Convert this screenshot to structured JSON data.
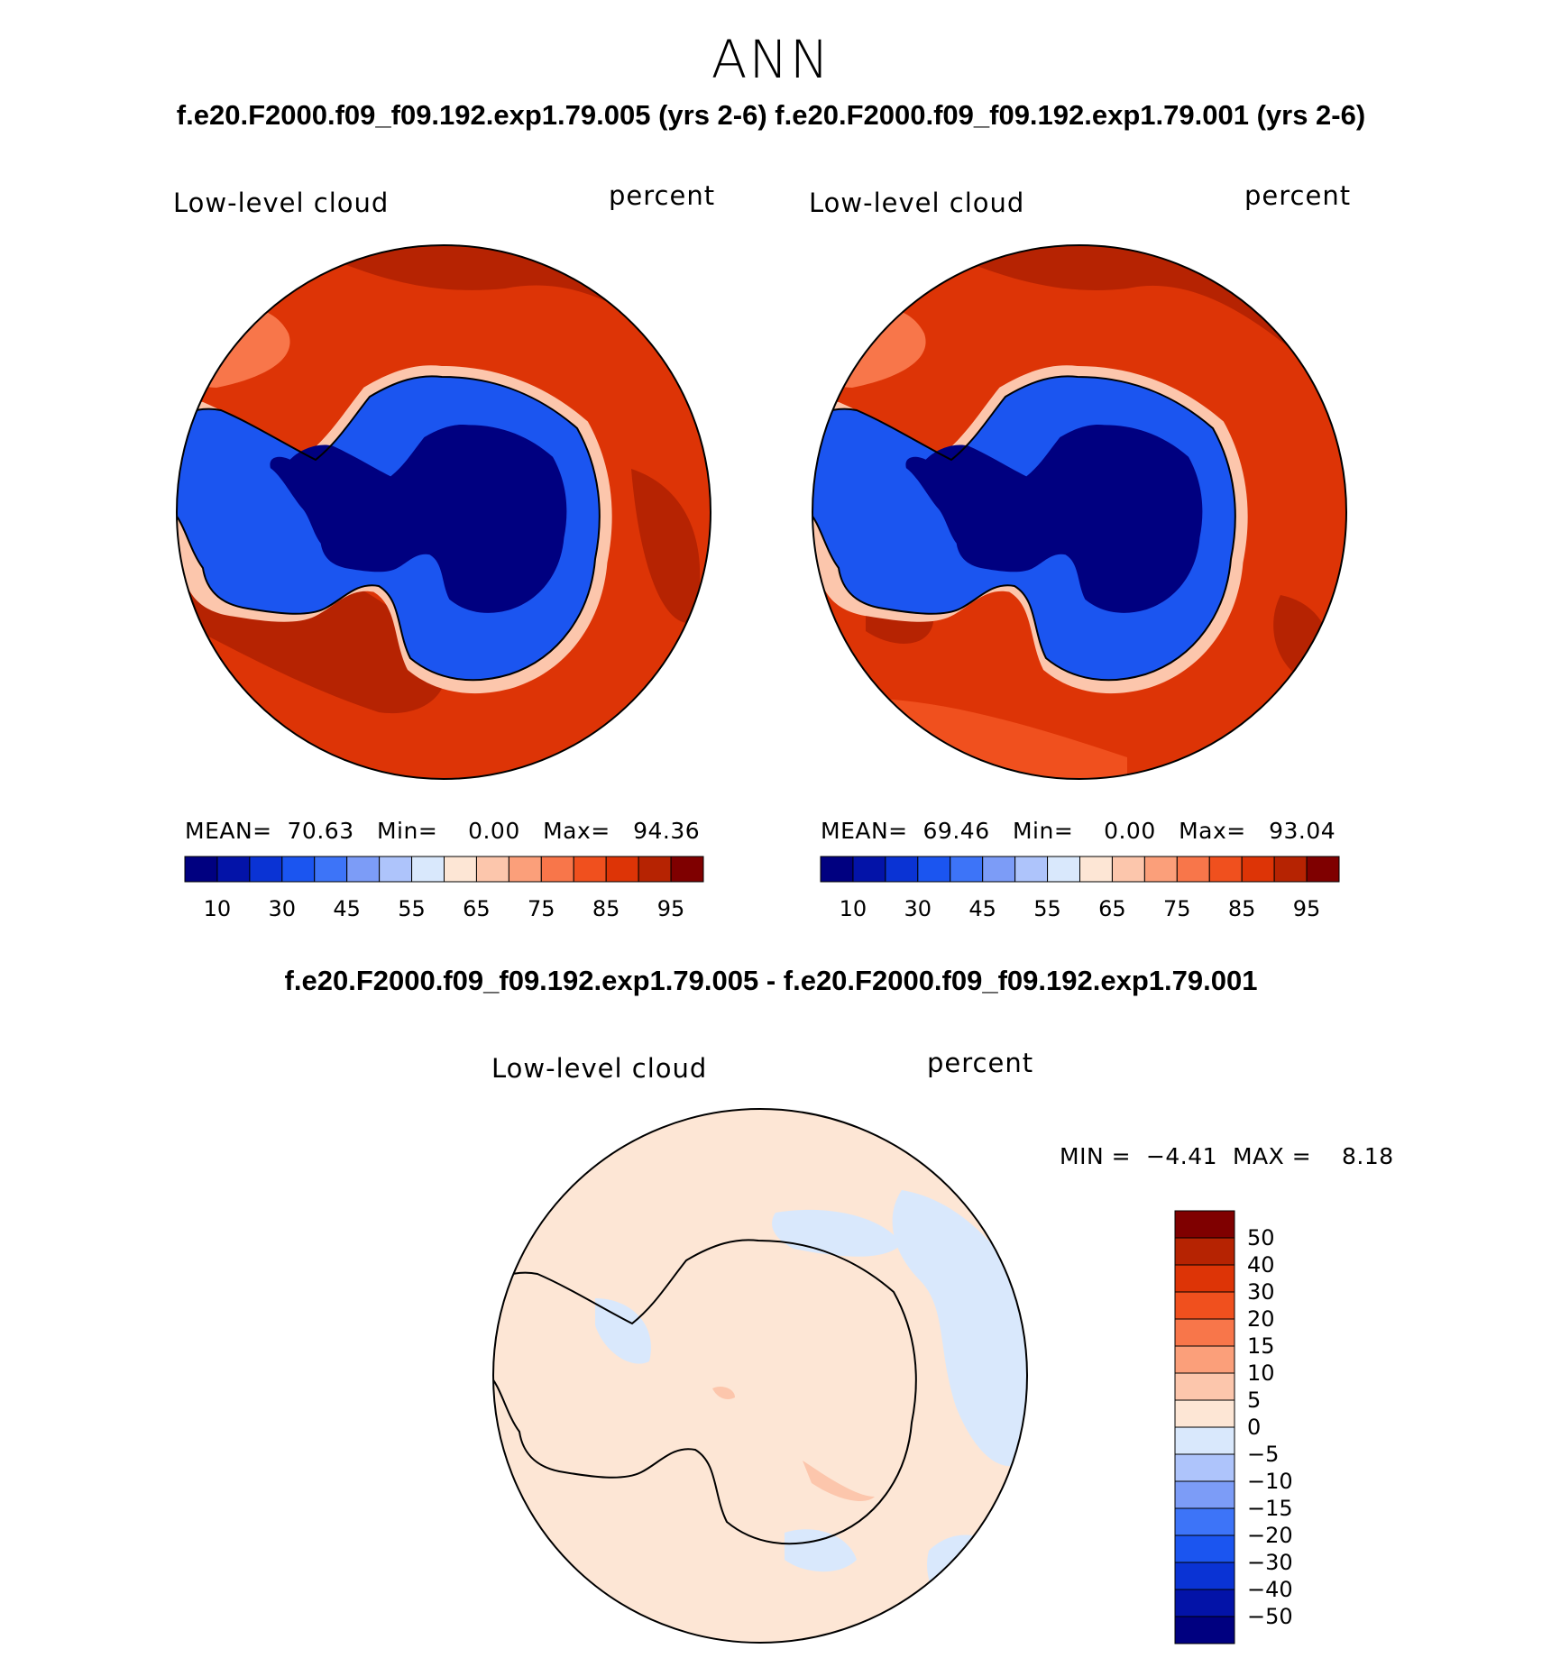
{
  "title": "ANN",
  "top_title": "f.e20.F2000.f09_f09.192.exp1.79.005 (yrs 2-6)  f.e20.F2000.f09_f09.192.exp1.79.001 (yrs 2-6)",
  "diff_title": "f.e20.F2000.f09_f09.192.exp1.79.005 - f.e20.F2000.f09_f09.192.exp1.79.001",
  "colors": {
    "seq": [
      "#000080",
      "#0313a8",
      "#0a33d4",
      "#1b55f0",
      "#3d74f8",
      "#7c9cf7",
      "#aec4fb",
      "#d9e8fc",
      "#fde6d5",
      "#fcc6ac",
      "#fb9f7a",
      "#f8764a",
      "#f0501e",
      "#dd3406",
      "#b62302",
      "#7f0000"
    ],
    "div": [
      "#000080",
      "#0313a8",
      "#0a33d4",
      "#1b55f0",
      "#3d74f8",
      "#7c9cf7",
      "#aec4fb",
      "#d9e8fc",
      "#fde6d5",
      "#fcc6ac",
      "#fb9f7a",
      "#f8764a",
      "#f0501e",
      "#dd3406",
      "#b62302",
      "#7f0000"
    ]
  },
  "chart_data": [
    {
      "type": "heatmap",
      "projection": "south polar stereographic",
      "variable": "Low-level cloud",
      "units": "percent",
      "case": "f.e20.F2000.f09_f09.192.exp1.79.005 (yrs 2-6)",
      "stats": {
        "mean": "70.63",
        "min": "0.00",
        "max": "94.36"
      },
      "stats_labels": {
        "mean": "MEAN=",
        "min": "Min=",
        "max": "Max="
      },
      "colorbar_labels": [
        "10",
        "30",
        "45",
        "55",
        "65",
        "75",
        "85",
        "95"
      ]
    },
    {
      "type": "heatmap",
      "projection": "south polar stereographic",
      "variable": "Low-level cloud",
      "units": "percent",
      "case": "f.e20.F2000.f09_f09.192.exp1.79.001 (yrs 2-6)",
      "stats": {
        "mean": "69.46",
        "min": "0.00",
        "max": "93.04"
      },
      "stats_labels": {
        "mean": "MEAN=",
        "min": "Min=",
        "max": "Max="
      },
      "colorbar_labels": [
        "10",
        "30",
        "45",
        "55",
        "65",
        "75",
        "85",
        "95"
      ]
    },
    {
      "type": "heatmap",
      "projection": "south polar stereographic",
      "variable": "Low-level cloud",
      "units": "percent",
      "case": "f.e20.F2000.f09_f09.192.exp1.79.005 - f.e20.F2000.f09_f09.192.exp1.79.001",
      "stats": {
        "min": "−4.41",
        "max": "8.18"
      },
      "stats_labels": {
        "min": "MIN =",
        "max": "MAX ="
      },
      "colorbar_labels": [
        "50",
        "40",
        "30",
        "20",
        "15",
        "10",
        "5",
        "0",
        "−5",
        "−10",
        "−15",
        "−20",
        "−30",
        "−40",
        "−50"
      ]
    }
  ]
}
